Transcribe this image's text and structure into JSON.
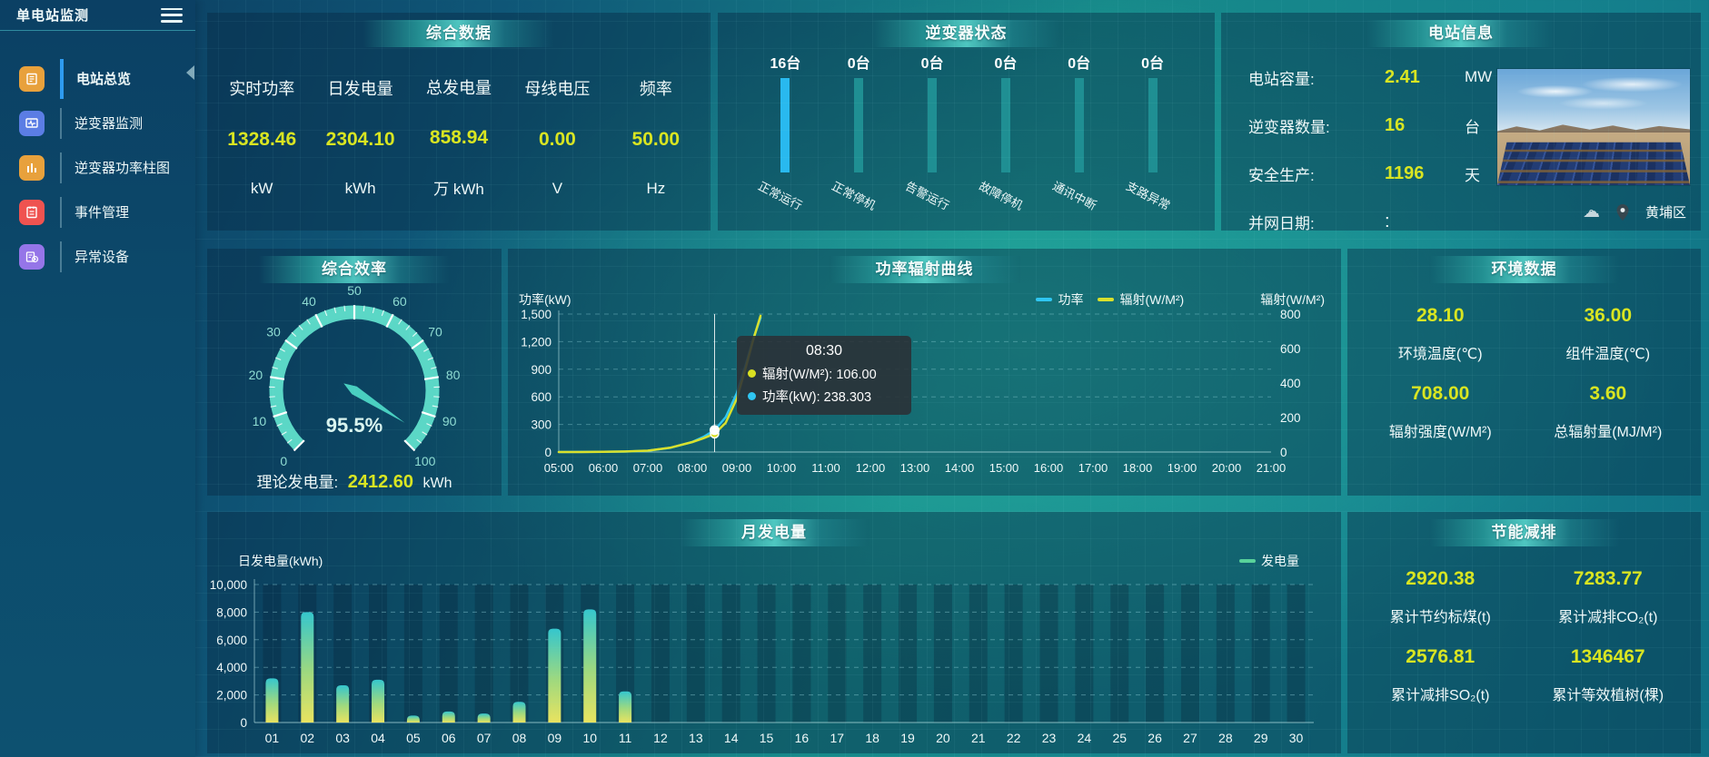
{
  "app": {
    "title": "单电站监测"
  },
  "colors": {
    "accent_yellow": "#d9e521",
    "power_cyan": "#2fc6f2",
    "radiation_yellow": "#d9e02c",
    "bar_teal": "#1f8f93",
    "bar_highlight": "#29b9ef",
    "gauge_teal": "#5bd7c6",
    "gen_green": "#58d29a"
  },
  "sidebar": {
    "items": [
      {
        "label": "电站总览",
        "icon": "overview-doc-icon",
        "color": "#e8a13c",
        "active": true
      },
      {
        "label": "逆变器监测",
        "icon": "inverter-monitor-icon",
        "color": "#5b7de4",
        "active": false
      },
      {
        "label": "逆变器功率柱图",
        "icon": "power-bars-icon",
        "color": "#e8a13c",
        "active": false
      },
      {
        "label": "事件管理",
        "icon": "event-note-icon",
        "color": "#ef5350",
        "active": false
      },
      {
        "label": "异常设备",
        "icon": "abnormal-device-icon",
        "color": "#9575e8",
        "active": false
      }
    ]
  },
  "summary": {
    "title": "综合数据",
    "metrics": [
      {
        "label": "实时功率",
        "value": "1328.46",
        "unit": "kW"
      },
      {
        "label": "日发电量",
        "value": "2304.10",
        "unit": "kWh"
      },
      {
        "label": "总发电量",
        "value": "858.94",
        "unit": "万 kWh"
      },
      {
        "label": "母线电压",
        "value": "0.00",
        "unit": "V"
      },
      {
        "label": "频率",
        "value": "50.00",
        "unit": "Hz"
      }
    ]
  },
  "inverter_status": {
    "title": "逆变器状态",
    "bars": [
      {
        "count": "16台",
        "label": "正常运行",
        "highlight": true
      },
      {
        "count": "0台",
        "label": "正常停机",
        "highlight": false
      },
      {
        "count": "0台",
        "label": "告警运行",
        "highlight": false
      },
      {
        "count": "0台",
        "label": "故障停机",
        "highlight": false
      },
      {
        "count": "0台",
        "label": "通讯中断",
        "highlight": false
      },
      {
        "count": "0台",
        "label": "支路异常",
        "highlight": false
      }
    ]
  },
  "station_info": {
    "title": "电站信息",
    "rows": [
      {
        "label": "电站容量:",
        "value": "2.41",
        "unit": "MW",
        "plain": false
      },
      {
        "label": "逆变器数量:",
        "value": "16",
        "unit": "台",
        "plain": false
      },
      {
        "label": "安全生产:",
        "value": "1196",
        "unit": "天",
        "plain": false
      },
      {
        "label": "并网日期:",
        "value": ":",
        "unit": "",
        "plain": true
      }
    ],
    "location": "黄埔区"
  },
  "efficiency": {
    "title": "综合效率",
    "gauge": {
      "value": 95.5,
      "display": "95.5%",
      "min": 0,
      "max": 100,
      "major_tick_step": 10,
      "minor_tick_step": 2.5
    },
    "theory": {
      "label": "理论发电量:",
      "value": "2412.60",
      "unit": "kWh"
    }
  },
  "power_curve": {
    "title": "功率辐射曲线",
    "chart_data": {
      "type": "line",
      "y_left": {
        "label": "功率(kW)",
        "min": 0,
        "max": 1500,
        "ticks": [
          "0",
          "300",
          "600",
          "900",
          "1,200",
          "1,500"
        ]
      },
      "y_right": {
        "label": "辐射(W/M²)",
        "min": 0,
        "max": 800,
        "ticks": [
          "0",
          "200",
          "400",
          "600",
          "800"
        ]
      },
      "x_labels": [
        "05:00",
        "06:00",
        "07:00",
        "08:00",
        "09:00",
        "10:00",
        "11:00",
        "12:00",
        "13:00",
        "14:00",
        "15:00",
        "16:00",
        "17:00",
        "18:00",
        "19:00",
        "20:00",
        "21:00"
      ],
      "x_range_minutes": [
        300,
        1260
      ],
      "series": [
        {
          "name": "功率",
          "color": "#2fc6f2",
          "axis": "left",
          "points": [
            [
              300,
              0
            ],
            [
              330,
              1
            ],
            [
              360,
              2
            ],
            [
              390,
              5
            ],
            [
              420,
              14
            ],
            [
              450,
              45
            ],
            [
              480,
              110
            ],
            [
              495,
              165
            ],
            [
              510,
              238.3
            ],
            [
              525,
              380
            ],
            [
              540,
              640
            ],
            [
              552,
              950
            ],
            [
              562,
              1230
            ],
            [
              572,
              1460
            ]
          ]
        },
        {
          "name": "辐射(W/M²)",
          "color": "#d9e02c",
          "axis": "right",
          "points": [
            [
              300,
              0
            ],
            [
              330,
              0
            ],
            [
              360,
              1
            ],
            [
              390,
              3
            ],
            [
              420,
              8
            ],
            [
              450,
              25
            ],
            [
              480,
              58
            ],
            [
              495,
              80
            ],
            [
              510,
              106
            ],
            [
              525,
              170
            ],
            [
              540,
              310
            ],
            [
              552,
              490
            ],
            [
              562,
              650
            ],
            [
              572,
              790
            ]
          ]
        }
      ],
      "hover": {
        "time_minutes": 510,
        "tooltip": {
          "time": "08:30",
          "items": [
            {
              "name": "辐射(W/M²)",
              "value": "106.00",
              "color": "#d9e021"
            },
            {
              "name": "功率(kW)",
              "value": "238.303",
              "color": "#2fc6f2"
            }
          ]
        }
      }
    }
  },
  "environment": {
    "title": "环境数据",
    "cells": [
      {
        "value": "28.10",
        "label": "环境温度(℃)"
      },
      {
        "value": "36.00",
        "label": "组件温度(℃)"
      },
      {
        "value": "708.00",
        "label": "辐射强度(W/M²)"
      },
      {
        "value": "3.60",
        "label": "总辐射量(MJ/M²)"
      }
    ]
  },
  "monthly": {
    "title": "月发电量",
    "chart_data": {
      "type": "bar",
      "axis_label": "日发电量(kWh)",
      "legend": "发电量",
      "legend_color": "#58d29a",
      "ylim": [
        0,
        10000
      ],
      "yticks": [
        "0",
        "2,000",
        "4,000",
        "6,000",
        "8,000",
        "10,000"
      ],
      "categories": [
        "01",
        "02",
        "03",
        "04",
        "05",
        "06",
        "07",
        "08",
        "09",
        "10",
        "11",
        "12",
        "13",
        "14",
        "15",
        "16",
        "17",
        "18",
        "19",
        "20",
        "21",
        "22",
        "23",
        "24",
        "25",
        "26",
        "27",
        "28",
        "29",
        "30"
      ],
      "values": [
        3200,
        8000,
        2700,
        3100,
        500,
        800,
        650,
        1500,
        6800,
        8200,
        2250,
        0,
        0,
        0,
        0,
        0,
        0,
        0,
        0,
        0,
        0,
        0,
        0,
        0,
        0,
        0,
        0,
        0,
        0,
        0
      ]
    }
  },
  "saving": {
    "title": "节能减排",
    "cells": [
      {
        "value": "2920.38",
        "label": "累计节约标煤(t)"
      },
      {
        "value": "7283.77",
        "label": "累计减排CO₂(t)"
      },
      {
        "value": "2576.81",
        "label": "累计减排SO₂(t)"
      },
      {
        "value": "1346467",
        "label": "累计等效植树(棵)"
      }
    ]
  }
}
